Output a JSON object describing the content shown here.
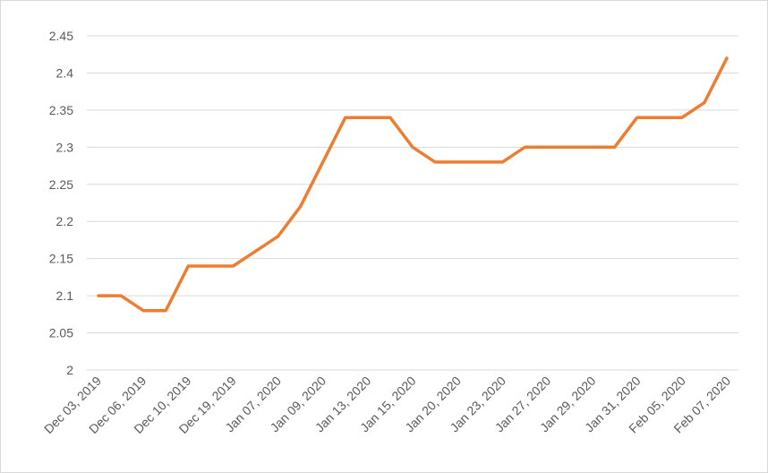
{
  "chart_data": {
    "type": "line",
    "title": "",
    "xlabel": "",
    "ylabel": "",
    "ylim": [
      2,
      2.45
    ],
    "yticks": [
      "2",
      "2.05",
      "2.1",
      "2.15",
      "2.2",
      "2.25",
      "2.3",
      "2.35",
      "2.4",
      "2.45"
    ],
    "grid": true,
    "legend": "none",
    "line_color": "#ed7d31",
    "grid_color": "#d9d9d9",
    "axis_color": "#d9d9d9",
    "x_labels": [
      "Dec 03, 2019",
      "Dec 06, 2019",
      "Dec 10, 2019",
      "Dec 19, 2019",
      "Jan 07, 2020",
      "Jan 09, 2020",
      "Jan 13, 2020",
      "Jan 15, 2020",
      "Jan 20, 2020",
      "Jan 23, 2020",
      "Jan 27, 2020",
      "Jan 29, 2020",
      "Jan 31, 2020",
      "Feb 05, 2020",
      "Feb 07, 2020"
    ],
    "series": [
      {
        "values": [
          2.1,
          2.1,
          2.08,
          2.08,
          2.14,
          2.14,
          2.14,
          2.16,
          2.18,
          2.22,
          2.28,
          2.34,
          2.34,
          2.34,
          2.3,
          2.28,
          2.28,
          2.28,
          2.28,
          2.3,
          2.3,
          2.3,
          2.3,
          2.3,
          2.34,
          2.34,
          2.34,
          2.36,
          2.42
        ]
      }
    ]
  }
}
